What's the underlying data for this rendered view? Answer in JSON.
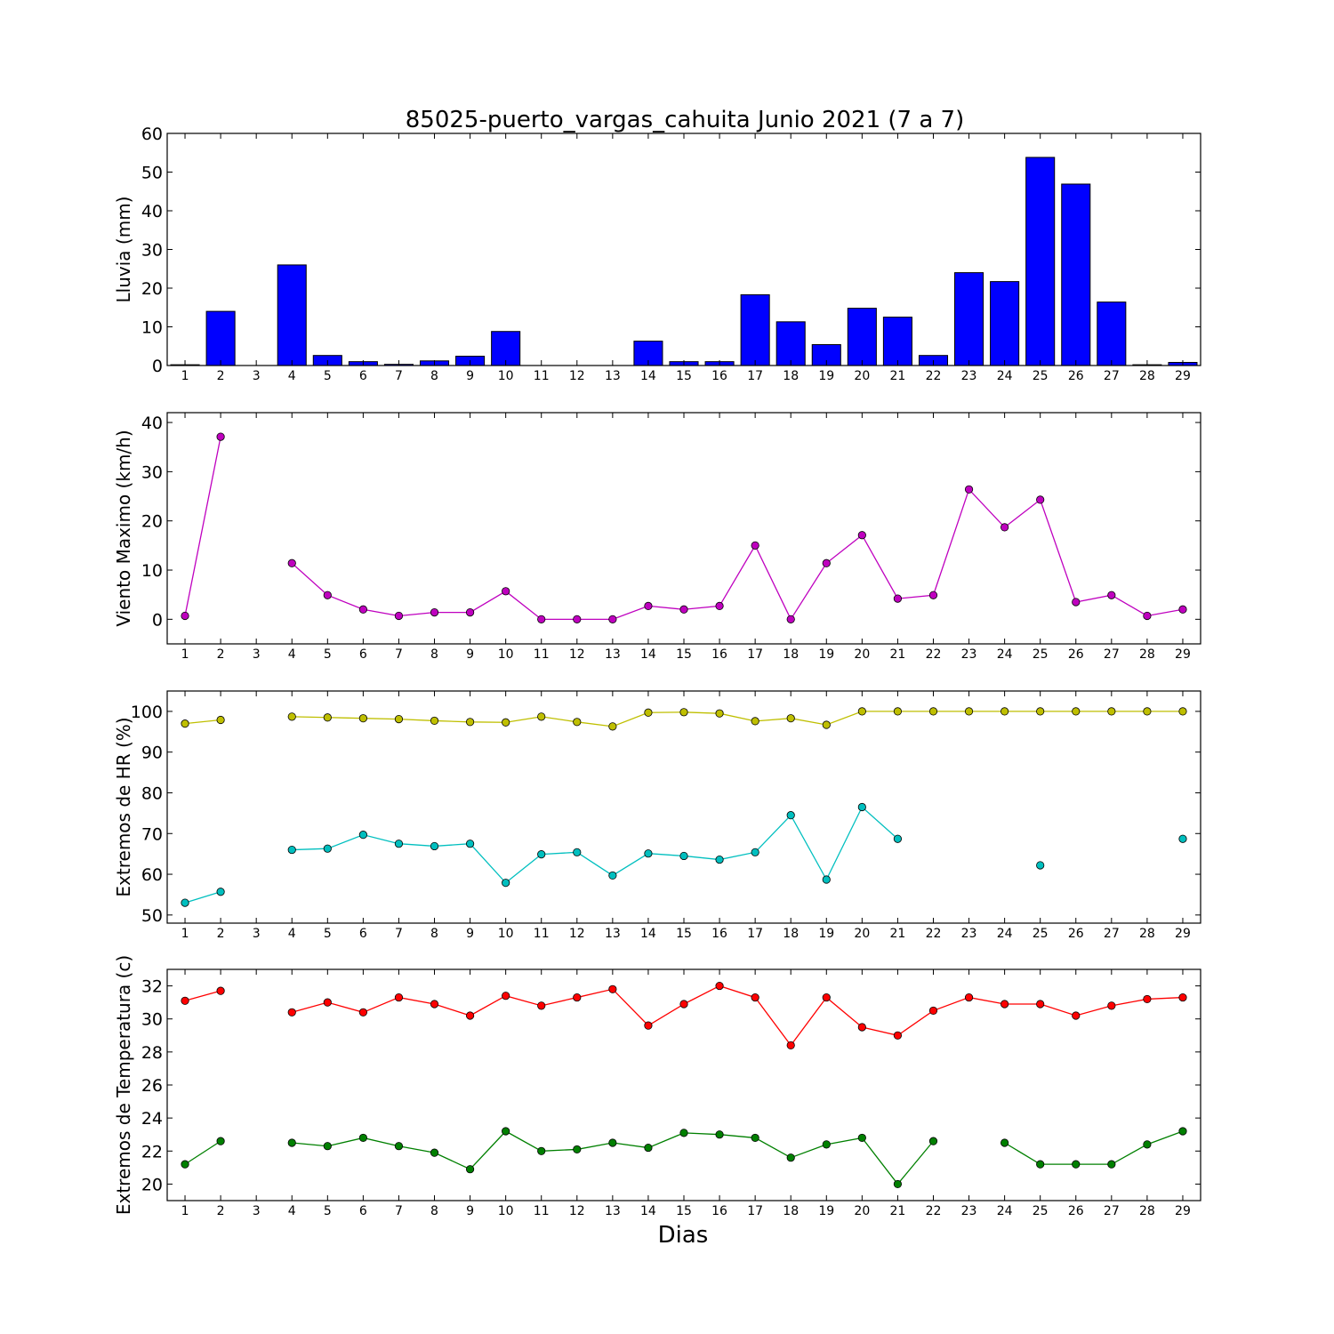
{
  "figure": {
    "title": "85025-puerto_vargas_cahuita Junio 2021  (7 a 7)",
    "xlabel": "Dias"
  },
  "chart_data": [
    {
      "type": "bar",
      "ylabel": "Lluvia (mm)",
      "ylim": [
        0,
        60
      ],
      "yticks": [
        0,
        10,
        20,
        30,
        40,
        50,
        60
      ],
      "x": [
        1,
        2,
        3,
        4,
        5,
        6,
        7,
        8,
        9,
        10,
        11,
        12,
        13,
        14,
        15,
        16,
        17,
        18,
        19,
        20,
        21,
        22,
        23,
        24,
        25,
        26,
        27,
        28,
        29
      ],
      "series": [
        {
          "color": "#0000ff",
          "values": [
            0.2,
            14,
            0,
            26,
            2.6,
            1,
            0.3,
            1.2,
            2.4,
            8.8,
            0,
            0,
            0,
            6.3,
            1,
            1,
            18.3,
            11.3,
            5.4,
            14.8,
            12.5,
            2.6,
            24,
            21.7,
            53.8,
            46.9,
            16.4,
            0.2,
            0.8
          ]
        }
      ]
    },
    {
      "type": "line",
      "ylabel": "Viento Maximo (km/h)",
      "ylim": [
        -5,
        42
      ],
      "yticks": [
        0,
        10,
        20,
        30,
        40
      ],
      "x": [
        1,
        2,
        3,
        4,
        5,
        6,
        7,
        8,
        9,
        10,
        11,
        12,
        13,
        14,
        15,
        16,
        17,
        18,
        19,
        20,
        21,
        22,
        23,
        24,
        25,
        26,
        27,
        28,
        29
      ],
      "series": [
        {
          "color": "#bf00bf",
          "values": [
            0.7,
            37.1,
            null,
            11.4,
            4.9,
            2,
            0.7,
            1.4,
            1.4,
            5.7,
            0,
            0,
            0,
            2.7,
            2,
            2.7,
            15,
            0,
            11.4,
            17.1,
            4.2,
            4.9,
            26.4,
            18.7,
            24.3,
            3.5,
            4.9,
            0.7,
            2
          ]
        }
      ]
    },
    {
      "type": "line",
      "ylabel": "Extremos de HR (%)",
      "ylim": [
        48,
        105
      ],
      "yticks": [
        50,
        60,
        70,
        80,
        90,
        100
      ],
      "x": [
        1,
        2,
        3,
        4,
        5,
        6,
        7,
        8,
        9,
        10,
        11,
        12,
        13,
        14,
        15,
        16,
        17,
        18,
        19,
        20,
        21,
        22,
        23,
        24,
        25,
        26,
        27,
        28,
        29
      ],
      "series": [
        {
          "color": "#bfbf00",
          "values": [
            97,
            97.9,
            null,
            98.7,
            98.5,
            98.3,
            98.1,
            97.7,
            97.4,
            97.3,
            98.7,
            97.4,
            96.3,
            99.7,
            99.8,
            99.5,
            97.6,
            98.3,
            96.7,
            100,
            100,
            100,
            100,
            100,
            100,
            100,
            100,
            100,
            100
          ]
        },
        {
          "color": "#00bfbf",
          "values": [
            53,
            55.7,
            null,
            66,
            66.3,
            69.7,
            67.5,
            66.9,
            67.5,
            57.9,
            64.9,
            65.4,
            59.7,
            65.1,
            64.5,
            63.6,
            65.4,
            74.5,
            58.7,
            76.5,
            68.7,
            null,
            null,
            null,
            62.2,
            null,
            null,
            null,
            68.7
          ]
        }
      ]
    },
    {
      "type": "line",
      "ylabel": "Extremos de Temperatura (c)",
      "ylim": [
        19,
        33
      ],
      "yticks": [
        20,
        22,
        24,
        26,
        28,
        30,
        32
      ],
      "x": [
        1,
        2,
        3,
        4,
        5,
        6,
        7,
        8,
        9,
        10,
        11,
        12,
        13,
        14,
        15,
        16,
        17,
        18,
        19,
        20,
        21,
        22,
        23,
        24,
        25,
        26,
        27,
        28,
        29
      ],
      "series": [
        {
          "color": "#ff0000",
          "values": [
            31.1,
            31.7,
            null,
            30.4,
            31,
            30.4,
            31.3,
            30.9,
            30.2,
            31.4,
            30.8,
            31.3,
            31.8,
            29.6,
            30.9,
            32,
            31.3,
            28.4,
            31.3,
            29.5,
            29,
            30.5,
            31.3,
            30.9,
            30.9,
            30.2,
            30.8,
            31.2,
            31.3
          ]
        },
        {
          "color": "#008000",
          "values": [
            21.2,
            22.6,
            null,
            22.5,
            22.3,
            22.8,
            22.3,
            21.9,
            20.9,
            23.2,
            22,
            22.1,
            22.5,
            22.2,
            23.1,
            23,
            22.8,
            21.6,
            22.4,
            22.8,
            20,
            22.6,
            null,
            22.5,
            21.2,
            21.2,
            21.2,
            22.4,
            23.2
          ]
        }
      ]
    }
  ]
}
